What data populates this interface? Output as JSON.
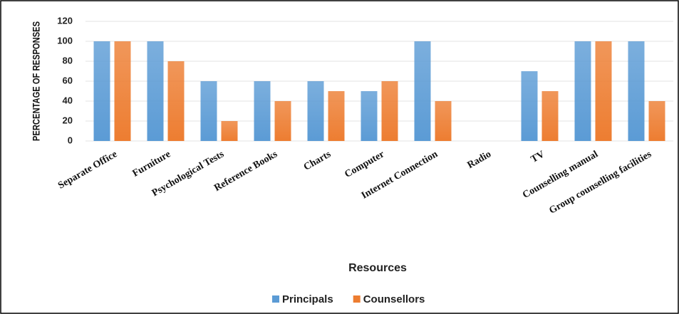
{
  "chart_data": {
    "type": "bar",
    "x_label": "Resources",
    "y_label": "PERCENTAGE OF RESPONSES",
    "categories": [
      "Separate Office",
      "Furniture",
      "Psychological Tests",
      "Reference Books",
      "Charts",
      "Computer",
      "Internet Connection",
      "Radio",
      "TV",
      "Counselling manual",
      "Group counselling facilities"
    ],
    "series": [
      {
        "name": "Principals",
        "color": "#5b9bd5",
        "values": [
          100,
          100,
          60,
          60,
          60,
          50,
          100,
          0,
          70,
          100,
          100
        ]
      },
      {
        "name": "Counsellors",
        "color": "#ed7d31",
        "values": [
          100,
          80,
          20,
          40,
          50,
          60,
          40,
          0,
          50,
          100,
          40
        ]
      }
    ],
    "ylim": [
      0,
      120
    ],
    "yticks": [
      0,
      20,
      40,
      60,
      80,
      100,
      120
    ],
    "grid": true,
    "legend": "bottom"
  }
}
